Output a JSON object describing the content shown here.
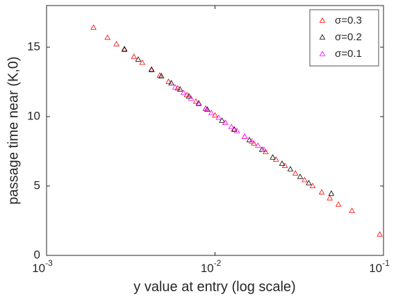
{
  "chart_data": {
    "type": "scatter",
    "xlabel": "y value at entry (log scale)",
    "ylabel": "passage time near (K,0)",
    "xscale": "log",
    "xlim": [
      0.001,
      0.1
    ],
    "xticks": [
      {
        "value": 0.001,
        "label": "10",
        "exponent": "-3"
      },
      {
        "value": 0.01,
        "label": "10",
        "exponent": "-2"
      },
      {
        "value": 0.1,
        "label": "10",
        "exponent": "-1"
      }
    ],
    "ylim": [
      0,
      18
    ],
    "yticks": [
      0,
      5,
      10,
      15
    ],
    "legend": "top-right",
    "marker": "triangle",
    "series": [
      {
        "name": "σ=0.3",
        "color": "#ff0000",
        "x": [
          0.0019,
          0.0023,
          0.0026,
          0.0029,
          0.0033,
          0.0037,
          0.0042,
          0.0047,
          0.0053,
          0.006,
          0.0068,
          0.0077,
          0.0088,
          0.01,
          0.0115,
          0.013,
          0.015,
          0.017,
          0.02,
          0.023,
          0.026,
          0.03,
          0.034,
          0.038,
          0.043,
          0.048,
          0.054,
          0.065,
          0.095
        ],
        "values": [
          16.4,
          15.68,
          15.21,
          14.8,
          14.3,
          13.87,
          13.39,
          12.96,
          12.5,
          12.03,
          11.55,
          11.08,
          10.57,
          10.08,
          9.55,
          9.08,
          8.54,
          8.06,
          7.44,
          6.9,
          6.44,
          5.9,
          5.42,
          4.99,
          4.53,
          4.11,
          3.66,
          3.2,
          1.5
        ]
      },
      {
        "name": "σ=0.2",
        "color": "#000000",
        "x": [
          0.0029,
          0.0035,
          0.0042,
          0.0048,
          0.0055,
          0.0062,
          0.007,
          0.008,
          0.009,
          0.011,
          0.013,
          0.016,
          0.019,
          0.022,
          0.025,
          0.028,
          0.032,
          0.036,
          0.049
        ],
        "values": [
          14.85,
          14.1,
          13.35,
          12.9,
          12.4,
          11.95,
          11.45,
          10.95,
          10.5,
          9.7,
          9.05,
          8.3,
          7.6,
          7.05,
          6.6,
          6.2,
          5.65,
          5.2,
          4.45
        ]
      },
      {
        "name": "σ=0.1",
        "color": "#ff00ff",
        "x": [
          0.0058,
          0.0065,
          0.0072,
          0.008,
          0.0088,
          0.0095,
          0.0105,
          0.0115,
          0.0125,
          0.0135,
          0.015,
          0.0165,
          0.018,
          0.0195
        ],
        "values": [
          12.1,
          11.7,
          11.3,
          10.9,
          10.55,
          10.25,
          9.9,
          9.55,
          9.25,
          8.95,
          8.55,
          8.2,
          7.9,
          7.6
        ]
      }
    ]
  }
}
